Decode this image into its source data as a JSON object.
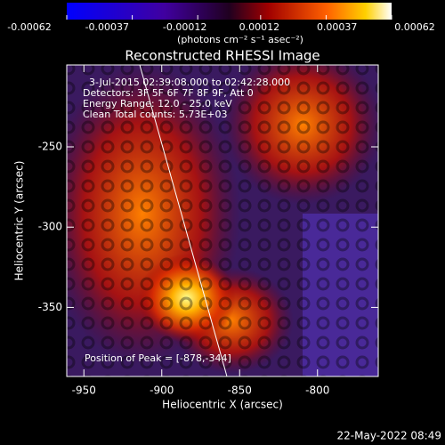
{
  "chart_data": {
    "type": "image",
    "title": "Reconstructed RHESSI Image",
    "x_label": "Heliocentric X (arcsec)",
    "y_label": "Heliocentric Y (arcsec)",
    "xlim": [
      -961,
      -761
    ],
    "xticks": [
      -950,
      -900,
      -850,
      -800
    ],
    "ylim": [
      -393,
      -199
    ],
    "yticks": [
      -250,
      -300,
      -350
    ],
    "colorbar": {
      "clim": [
        -0.00062,
        0.00062
      ],
      "ticks": [
        -0.00062,
        -0.00037,
        -0.00012,
        0.00012,
        0.00037,
        0.00062
      ],
      "label": "(photons cm⁻² s⁻¹ asec⁻²)"
    },
    "annotations": [
      "3-Jul-2015 02:39:08.000 to 02:42:28.000",
      "Detectors: 3F 5F 6F 7F 8F 9F, Att 0",
      "Energy Range: 12.0 - 25.0 keV",
      "Clean    Total counts: 5.73E+03"
    ],
    "peak_label": "Position of Peak = [-878,-344]",
    "timestamp": "22-May-2022 08:49"
  }
}
